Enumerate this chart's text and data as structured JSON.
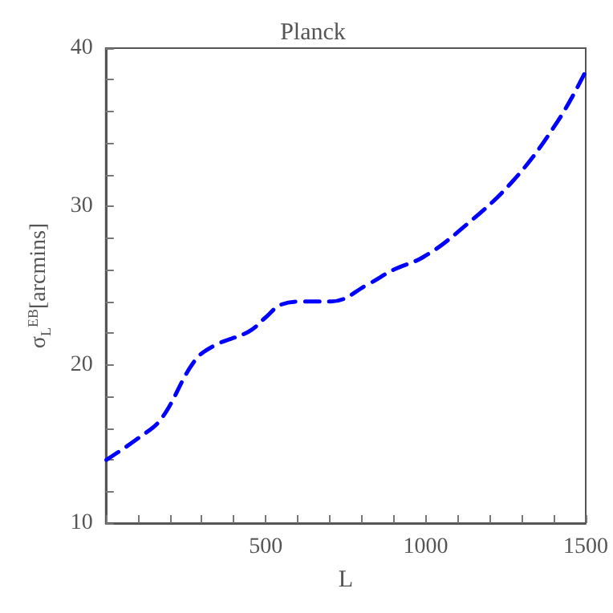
{
  "chart_data": {
    "type": "line",
    "title": "Planck",
    "xlabel": "L",
    "ylabel": "σ$_{L}$$^{EB}$[arcmins]",
    "series": [
      {
        "color": "#0000ff",
        "x": [
          2,
          104,
          174,
          276,
          338,
          447,
          500,
          548,
          618,
          704,
          821,
          899,
          992,
          1101,
          1272,
          1413,
          1499
        ],
        "values": [
          14.0,
          15.4,
          16.6,
          20.2,
          21.2,
          22.1,
          23.0,
          23.8,
          24.0,
          24.0,
          25.1,
          26.0,
          26.8,
          28.4,
          31.6,
          35.4,
          38.5
        ]
      }
    ],
    "xlim": [
      0,
      1500
    ],
    "ylim": [
      10,
      40
    ],
    "xticks": [
      {
        "value": 0,
        "label": null
      },
      {
        "value": 100,
        "label": null
      },
      {
        "value": 200,
        "label": null
      },
      {
        "value": 300,
        "label": null
      },
      {
        "value": 400,
        "label": null
      },
      500,
      {
        "value": 600,
        "label": null
      },
      {
        "value": 700,
        "label": null
      },
      {
        "value": 800,
        "label": null
      },
      {
        "value": 900,
        "label": null
      },
      1000,
      {
        "value": 1100,
        "label": null
      },
      {
        "value": 1200,
        "label": null
      },
      {
        "value": 1300,
        "label": null
      },
      {
        "value": 1400,
        "label": null
      },
      1500
    ],
    "yticks": [
      10,
      {
        "value": 12,
        "label": null
      },
      {
        "value": 14,
        "label": null
      },
      {
        "value": 16,
        "label": null
      },
      {
        "value": 18,
        "label": null
      },
      20,
      {
        "value": 22,
        "label": null
      },
      {
        "value": 24,
        "label": null
      },
      {
        "value": 26,
        "label": null
      },
      {
        "value": 28,
        "label": null
      },
      30,
      {
        "value": 32,
        "label": null
      },
      {
        "value": 34,
        "label": null
      },
      {
        "value": 36,
        "label": null
      },
      {
        "value": 38,
        "label": null
      },
      40
    ],
    "grid": false,
    "marker": "none",
    "line_style": "dashed"
  }
}
